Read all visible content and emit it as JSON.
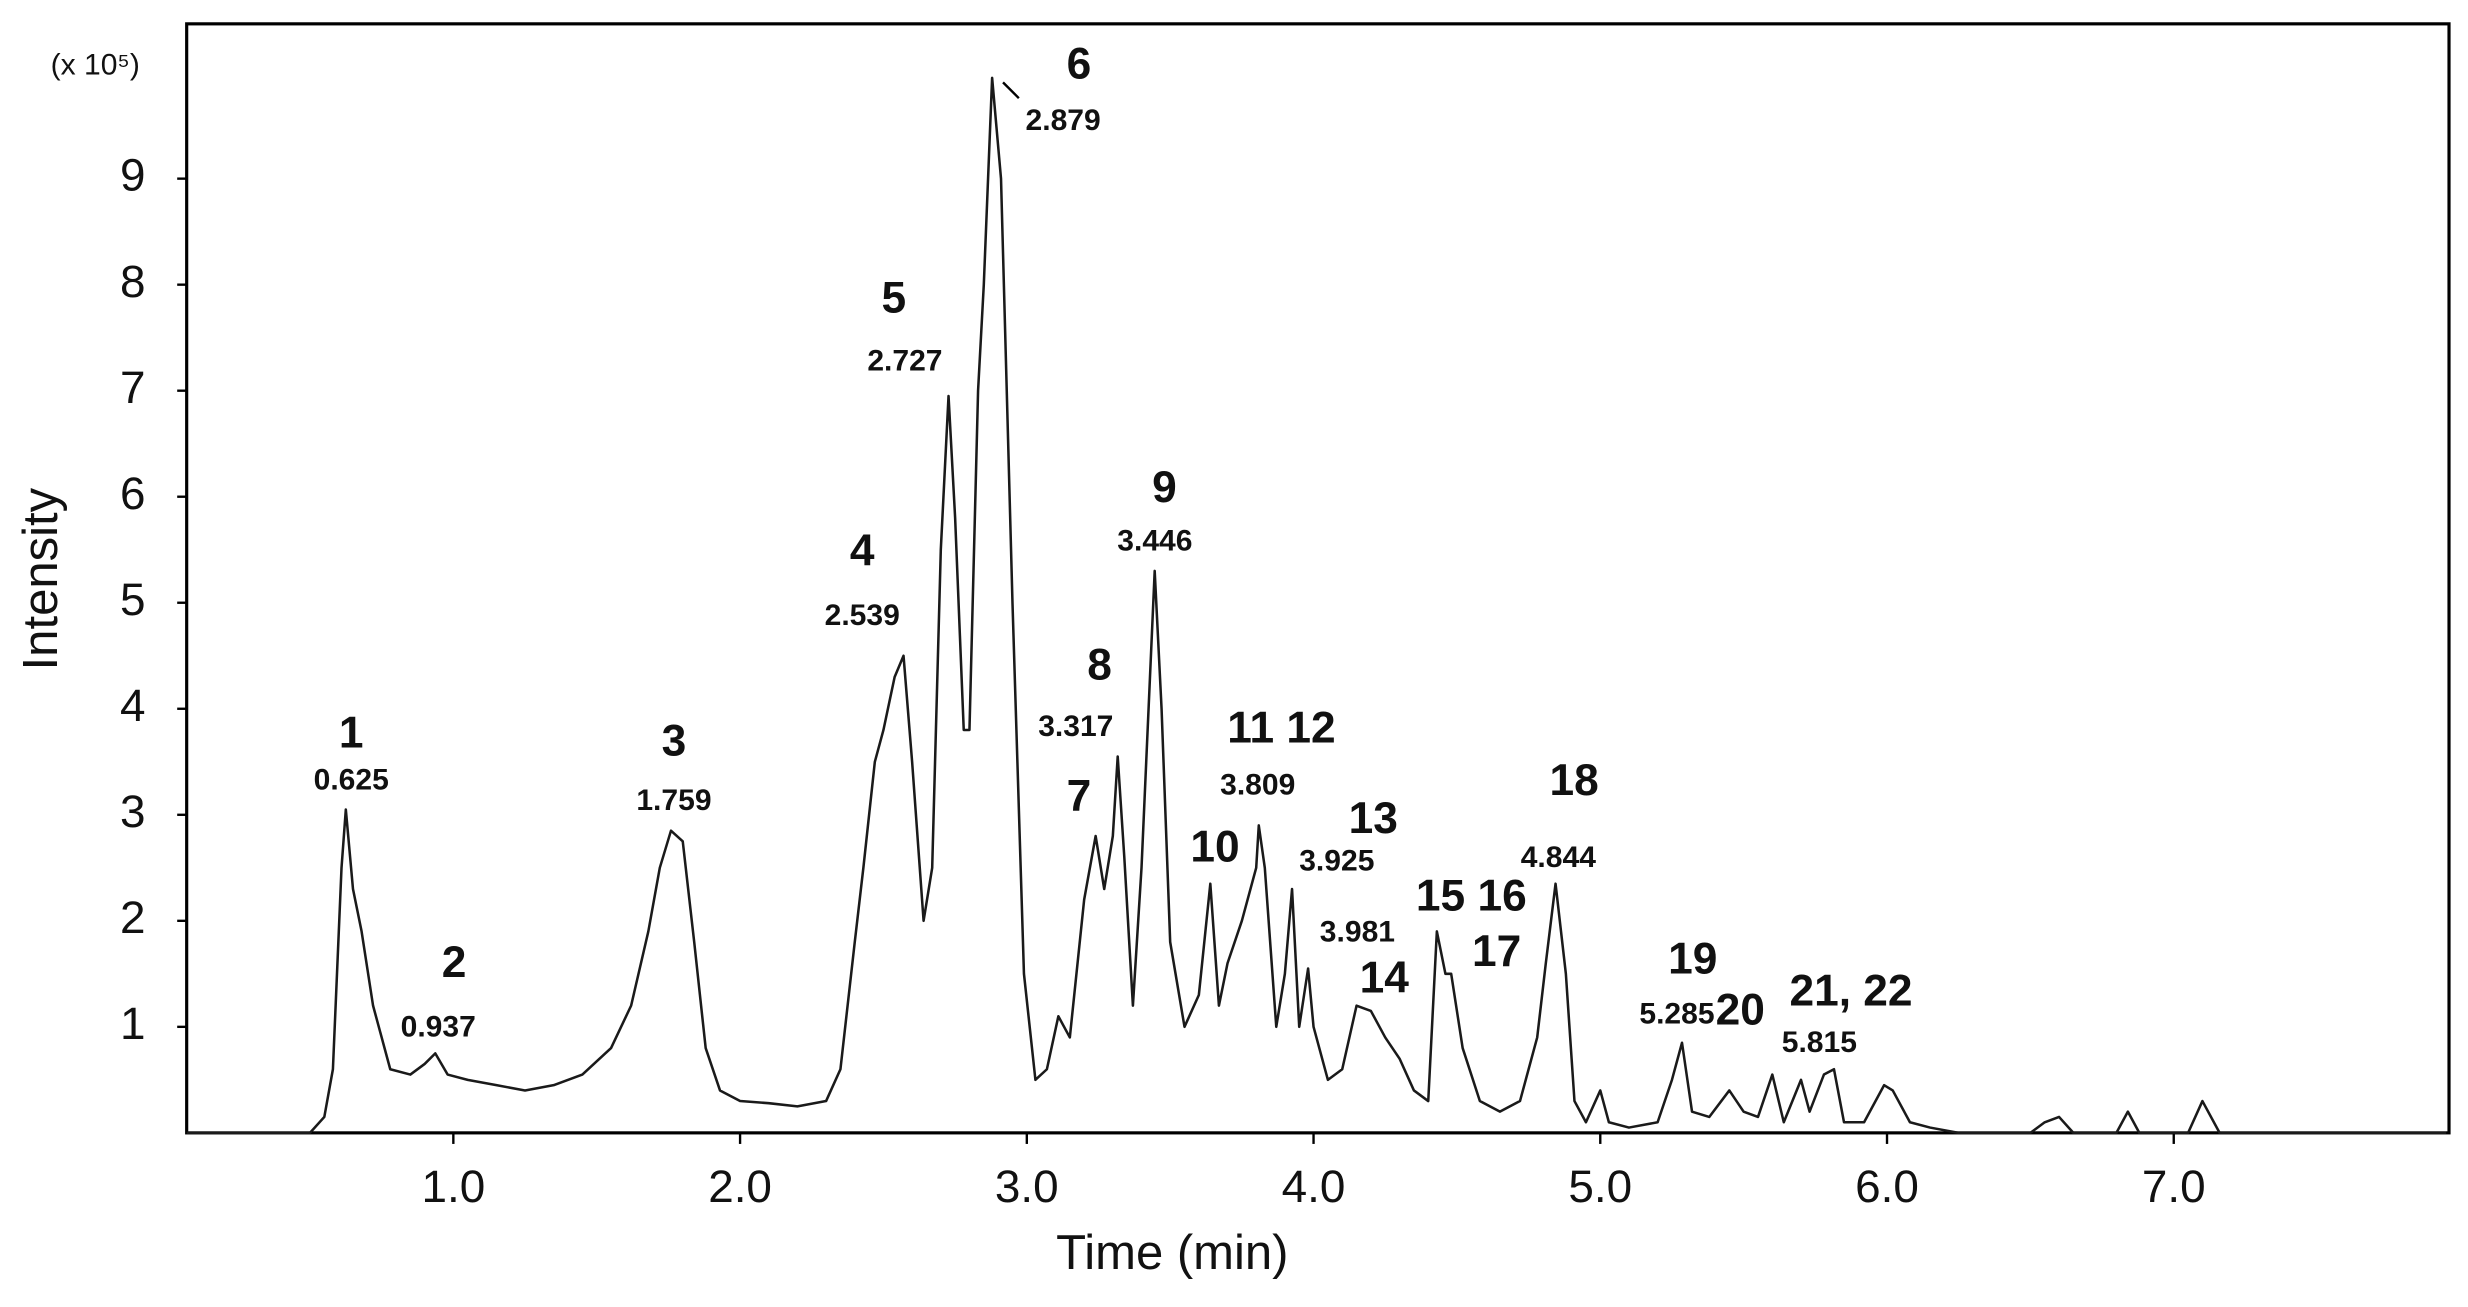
{
  "chart_data": {
    "type": "line",
    "x_label": "Time (min)",
    "y_label": "Intensity",
    "y_unit": "(x 10⁵)",
    "xlim": [
      0.07,
      7.96
    ],
    "ylim": [
      0,
      10.46
    ],
    "xticks": [
      {
        "value": 1,
        "label": "1.0"
      },
      {
        "value": 2,
        "label": "2.0"
      },
      {
        "value": 3,
        "label": "3.0"
      },
      {
        "value": 4,
        "label": "4.0"
      },
      {
        "value": 5,
        "label": "5.0"
      },
      {
        "value": 6,
        "label": "6.0"
      },
      {
        "value": 7,
        "label": "7.0"
      }
    ],
    "yticks": [
      1,
      2,
      3,
      4,
      5,
      6,
      7,
      8,
      9
    ],
    "x": [
      0.07,
      0.5,
      0.55,
      0.58,
      0.61,
      0.625,
      0.65,
      0.68,
      0.72,
      0.78,
      0.85,
      0.9,
      0.937,
      0.98,
      1.05,
      1.15,
      1.25,
      1.35,
      1.45,
      1.55,
      1.62,
      1.68,
      1.72,
      1.759,
      1.8,
      1.84,
      1.88,
      1.93,
      2.0,
      2.1,
      2.2,
      2.3,
      2.35,
      2.4,
      2.43,
      2.47,
      2.5,
      2.539,
      2.57,
      2.6,
      2.64,
      2.67,
      2.7,
      2.727,
      2.75,
      2.78,
      2.8,
      2.83,
      2.85,
      2.879,
      2.91,
      2.95,
      2.99,
      3.03,
      3.07,
      3.11,
      3.15,
      3.2,
      3.24,
      3.27,
      3.3,
      3.317,
      3.34,
      3.37,
      3.4,
      3.446,
      3.47,
      3.5,
      3.55,
      3.6,
      3.64,
      3.67,
      3.7,
      3.75,
      3.8,
      3.809,
      3.83,
      3.87,
      3.9,
      3.925,
      3.95,
      3.981,
      4.0,
      4.05,
      4.1,
      4.15,
      4.2,
      4.25,
      4.3,
      4.35,
      4.4,
      4.43,
      4.46,
      4.48,
      4.52,
      4.58,
      4.65,
      4.72,
      4.78,
      4.81,
      4.844,
      4.88,
      4.91,
      4.95,
      5.0,
      5.03,
      5.1,
      5.2,
      5.25,
      5.285,
      5.32,
      5.38,
      5.45,
      5.5,
      5.55,
      5.6,
      5.64,
      5.7,
      5.73,
      5.78,
      5.815,
      5.85,
      5.92,
      5.99,
      6.02,
      6.08,
      6.15,
      6.25,
      6.5,
      6.55,
      6.6,
      6.65,
      6.8,
      6.84,
      6.88,
      7.05,
      7.1,
      7.16,
      7.3,
      7.95
    ],
    "series": [
      {
        "color": "#1a1a1a",
        "values": [
          0,
          0,
          0.15,
          0.6,
          2.5,
          3.05,
          2.3,
          1.9,
          1.2,
          0.6,
          0.55,
          0.65,
          0.75,
          0.55,
          0.5,
          0.45,
          0.4,
          0.45,
          0.55,
          0.8,
          1.2,
          1.9,
          2.5,
          2.85,
          2.75,
          1.8,
          0.8,
          0.4,
          0.3,
          0.28,
          0.25,
          0.3,
          0.6,
          1.8,
          2.5,
          3.5,
          3.8,
          4.3,
          4.5,
          3.5,
          2.0,
          2.5,
          5.5,
          6.95,
          5.8,
          3.8,
          3.8,
          7.0,
          8.0,
          9.95,
          9.0,
          5.0,
          1.5,
          0.5,
          0.6,
          1.1,
          0.9,
          2.2,
          2.8,
          2.3,
          2.8,
          3.55,
          2.6,
          1.2,
          2.5,
          5.3,
          4.0,
          1.8,
          1.0,
          1.3,
          2.35,
          1.2,
          1.6,
          2.0,
          2.5,
          2.9,
          2.5,
          1.0,
          1.5,
          2.3,
          1.0,
          1.55,
          1.0,
          0.5,
          0.6,
          1.2,
          1.15,
          0.9,
          0.7,
          0.4,
          0.3,
          1.9,
          1.5,
          1.5,
          0.8,
          0.3,
          0.2,
          0.3,
          0.9,
          1.6,
          2.35,
          1.5,
          0.3,
          0.1,
          0.4,
          0.1,
          0.05,
          0.1,
          0.5,
          0.85,
          0.2,
          0.15,
          0.4,
          0.2,
          0.15,
          0.55,
          0.1,
          0.5,
          0.2,
          0.55,
          0.6,
          0.1,
          0.1,
          0.45,
          0.4,
          0.1,
          0.05,
          0,
          0,
          0.1,
          0.15,
          0,
          0,
          0.2,
          0,
          0,
          0.3,
          0,
          0,
          0
        ]
      }
    ],
    "annotations": [
      {
        "label": "1",
        "rt": "0.625"
      },
      {
        "label": "2",
        "rt": "0.937"
      },
      {
        "label": "3",
        "rt": "1.759"
      },
      {
        "label": "4",
        "rt": "2.539"
      },
      {
        "label": "5",
        "rt": "2.727"
      },
      {
        "label": "6",
        "rt": "2.879"
      },
      {
        "label": "7"
      },
      {
        "label": "8",
        "rt": "3.317"
      },
      {
        "label": "9",
        "rt": "3.446"
      },
      {
        "label": "10"
      },
      {
        "label": "11 12",
        "rt": "3.809"
      },
      {
        "label": "13",
        "rt": "3.925"
      },
      {
        "label": "14",
        "rt": "3.981"
      },
      {
        "label": "15 16"
      },
      {
        "label": "17"
      },
      {
        "label": "18",
        "rt": "4.844"
      },
      {
        "label": "19",
        "rt": "5.285"
      },
      {
        "label": "20"
      },
      {
        "label": "21, 22",
        "rt": "5.815"
      }
    ]
  }
}
